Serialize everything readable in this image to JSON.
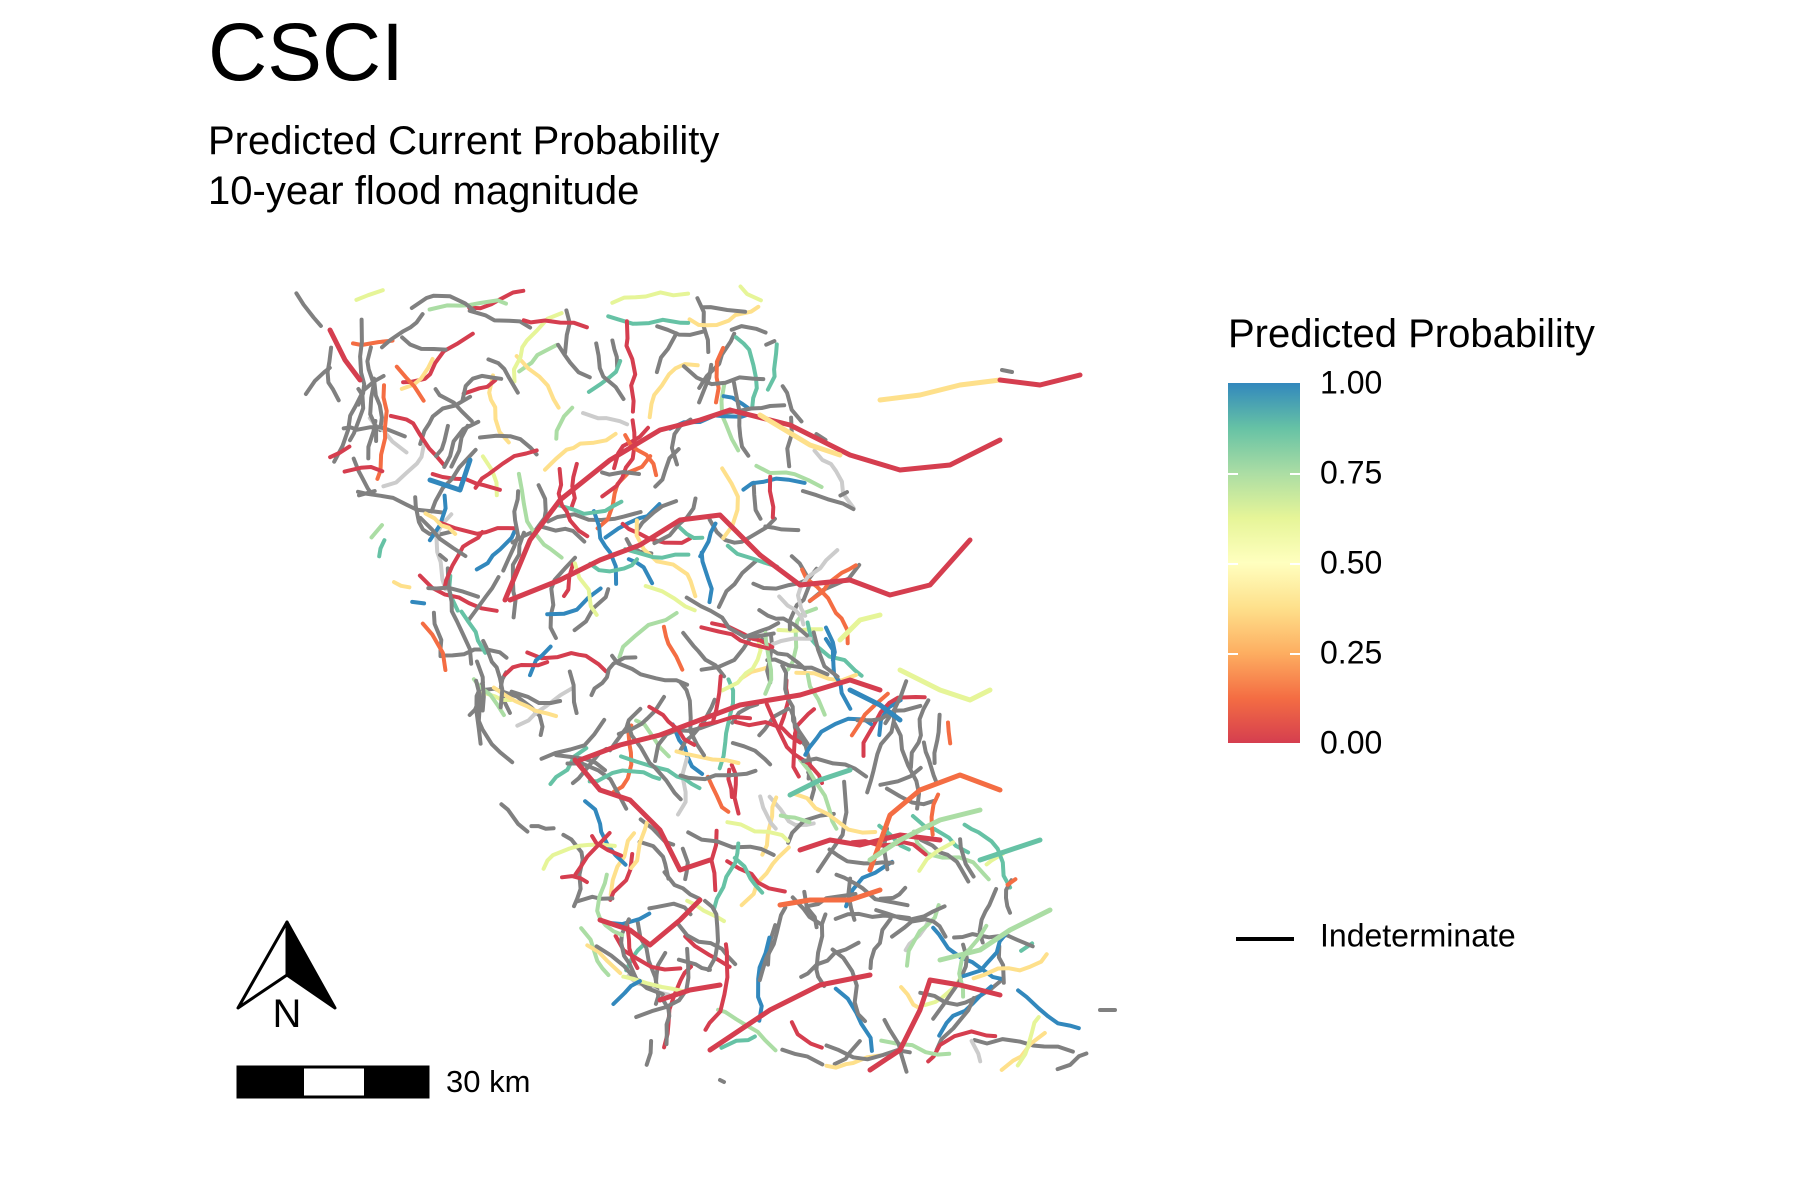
{
  "map": {
    "title": "CSCI",
    "subtitle_line1": "Predicted Current Probability",
    "subtitle_line2": "10-year flood magnitude"
  },
  "legend": {
    "title": "Predicted Probability",
    "ticks": [
      "1.00",
      "0.75",
      "0.50",
      "0.25",
      "0.00"
    ],
    "indeterminate_label": "Indeterminate",
    "palette": [
      "#d53e4f",
      "#f46d43",
      "#fdae61",
      "#fee08b",
      "#ffffbf",
      "#e6f598",
      "#abdda4",
      "#66c2a5",
      "#3288bd"
    ],
    "indeterminate_color": "#808080"
  },
  "scale_bar": {
    "label": "30 km"
  },
  "north_arrow": {
    "label": "N",
    "icon": "north-arrow-icon"
  }
}
